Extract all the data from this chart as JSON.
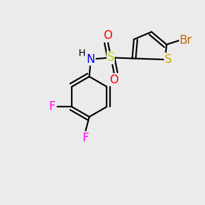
{
  "background_color": "#ebebeb",
  "atom_colors": {
    "N": "#0000ff",
    "O": "#ff0000",
    "S_thiophene": "#ccaa00",
    "S_sulfonyl": "#cccc00",
    "Br": "#cc6600",
    "F": "#ff00ff"
  },
  "bond_color": "#000000",
  "bond_width": 1.6,
  "font_size_atom": 12,
  "font_size_small": 10,
  "xlim": [
    -2.2,
    3.0
  ],
  "ylim": [
    -3.2,
    2.0
  ]
}
